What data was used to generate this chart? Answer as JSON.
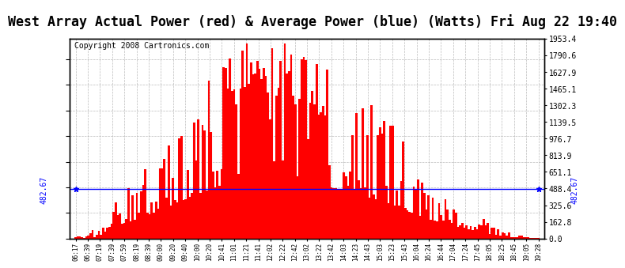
{
  "title": "West Array Actual Power (red) & Average Power (blue) (Watts) Fri Aug 22 19:40",
  "copyright": "Copyright 2008 Cartronics.com",
  "avg_power": 482.67,
  "y_max": 1953.4,
  "y_min": 0.0,
  "y_ticks": [
    0.0,
    162.8,
    325.6,
    488.4,
    651.1,
    813.9,
    976.7,
    1139.5,
    1302.3,
    1465.1,
    1627.9,
    1790.6,
    1953.4
  ],
  "y_tick_labels": [
    "0.0",
    "162.8",
    "325.6",
    "488.4",
    "651.1",
    "813.9",
    "976.7",
    "1139.5",
    "1302.3",
    "1465.1",
    "1627.9",
    "1790.6",
    "1953.4"
  ],
  "x_labels": [
    "06:17",
    "06:39",
    "07:19",
    "07:39",
    "07:59",
    "08:19",
    "08:39",
    "09:00",
    "09:20",
    "09:40",
    "10:00",
    "10:20",
    "10:41",
    "11:01",
    "11:21",
    "11:41",
    "12:02",
    "12:22",
    "12:42",
    "13:02",
    "13:22",
    "13:42",
    "14:03",
    "14:23",
    "14:43",
    "15:03",
    "15:23",
    "15:43",
    "16:04",
    "16:24",
    "16:44",
    "17:04",
    "17:24",
    "17:45",
    "18:05",
    "18:25",
    "18:45",
    "19:05",
    "19:28"
  ],
  "background_color": "#ffffff",
  "grid_color": "#aaaaaa",
  "bar_color": "#ff0000",
  "line_color": "#0000ff",
  "avg_label": "482.67",
  "title_fontsize": 12,
  "copyright_fontsize": 7
}
